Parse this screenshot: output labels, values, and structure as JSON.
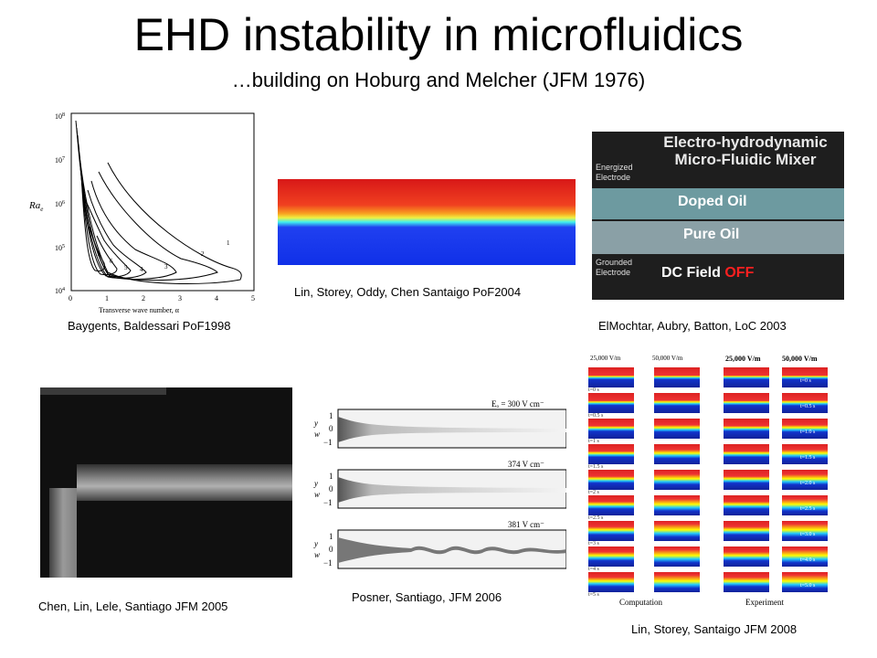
{
  "slide": {
    "title": "EHD instability in microfluidics",
    "subtitle": "…building on Hoburg and Melcher (JFM 1976)"
  },
  "figures": {
    "baygents": {
      "caption": "Baygents, Baldessari PoF1998",
      "ylabel": "Ra",
      "ylabel_sub": "e",
      "xlabel": "Transverse wave number, α",
      "yticks": [
        "10",
        "10",
        "10",
        "10",
        "10"
      ],
      "yticks_exp": [
        "8",
        "7",
        "6",
        "5",
        "4"
      ],
      "xticks": [
        "0",
        "1",
        "2",
        "3",
        "4",
        "5"
      ],
      "curve_labels": [
        "1",
        "2",
        "3",
        "4",
        "5",
        "6",
        "7"
      ]
    },
    "lin2004": {
      "caption": "Lin, Storey, Oddy, Chen Santaigo PoF2004"
    },
    "elmochtar": {
      "caption": "ElMochtar, Aubry, Batton, LoC 2003",
      "title_line1": "Electro-hydrodynamic",
      "title_line2": "Micro-Fluidic Mixer",
      "energized_line1": "Energized",
      "energized_line2": "Electrode",
      "doped": "Doped Oil",
      "pure": "Pure Oil",
      "grounded_line1": "Grounded",
      "grounded_line2": "Electrode",
      "field": "DC Field",
      "field_state": "OFF"
    },
    "chen2005": {
      "caption": "Chen, Lin, Lele, Santiago JFM 2005"
    },
    "posner": {
      "caption": "Posner, Santiago, JFM 2006",
      "field_labels": [
        "Eₒ = 300 V cm⁻",
        "374 V cm⁻",
        "381 V cm⁻"
      ],
      "axis_y": "y",
      "axis_w": "w",
      "ticks": [
        "1",
        "0",
        "−1"
      ]
    },
    "lin2008": {
      "caption": "Lin, Storey, Santaigo JFM 2008",
      "col_headers": [
        "25,000 V/m",
        "50,000 V/m",
        "25,000 V/m",
        "50,000 V/m"
      ],
      "times_left": [
        "t=0 s",
        "t=0.5 s",
        "t=1 s",
        "t=1.5 s",
        "t=2 s",
        "t=2.5 s",
        "t=3 s",
        "t=4 s",
        "t=5 s"
      ],
      "times_right": [
        "t=0 s",
        "t=0.5 s",
        "t=1.0 s",
        "t=1.5 s",
        "t=2.0 s",
        "t=2.5 s",
        "t=3.0 s",
        "t=4.0 s",
        "t=5.0 s"
      ],
      "label_left": "Computation",
      "label_right": "Experiment"
    }
  }
}
